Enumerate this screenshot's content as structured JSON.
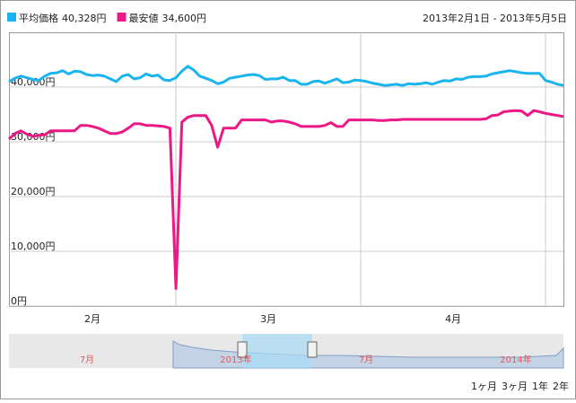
{
  "chart_data": {
    "type": "line",
    "subtitle": "2013年2月1日 - 2013年5月5日",
    "x_labels": [
      "2月",
      "3月",
      "4月"
    ],
    "ylim": [
      0,
      50000
    ],
    "yticks": [
      {
        "value": 0,
        "label": "0円"
      },
      {
        "value": 10000,
        "label": "10,000円"
      },
      {
        "value": 20000,
        "label": "20,000円"
      },
      {
        "value": 30000,
        "label": "30,000円"
      },
      {
        "value": 40000,
        "label": "40,000円"
      }
    ],
    "grid": true,
    "series": [
      {
        "name": "平均価格",
        "summary_label": "40,328円",
        "color": "#1ab4ef",
        "values": [
          41000,
          41600,
          42000,
          41700,
          41400,
          41200,
          42000,
          42500,
          42600,
          43000,
          42400,
          42900,
          42800,
          42300,
          42100,
          42200,
          42000,
          41500,
          41000,
          42000,
          42300,
          41500,
          41700,
          42400,
          42000,
          42200,
          41300,
          41200,
          41700,
          42900,
          43800,
          43100,
          42000,
          41600,
          41200,
          40600,
          40900,
          41600,
          41800,
          42000,
          42200,
          42300,
          42100,
          41400,
          41500,
          41500,
          41800,
          41200,
          41200,
          40500,
          40500,
          41000,
          41100,
          40700,
          41100,
          41500,
          40800,
          40900,
          41300,
          41200,
          41000,
          40700,
          40500,
          40300,
          40400,
          40500,
          40300,
          40600,
          40500,
          40600,
          40800,
          40500,
          40900,
          41200,
          41100,
          41500,
          41400,
          41800,
          41900,
          41900,
          42000,
          42400,
          42600,
          42800,
          43000,
          42800,
          42600,
          42500,
          42500,
          42500,
          41200,
          40900,
          40500,
          40300
        ]
      },
      {
        "name": "最安値",
        "summary_label": "34,600円",
        "color": "#ec1886",
        "values": [
          30500,
          31500,
          32000,
          31400,
          31000,
          31200,
          31300,
          32000,
          32000,
          32000,
          32000,
          32000,
          33000,
          33000,
          32800,
          32500,
          32000,
          31500,
          31500,
          31800,
          32500,
          33300,
          33300,
          33000,
          33000,
          32900,
          32800,
          32500,
          3200,
          33600,
          34500,
          34800,
          34800,
          34800,
          33000,
          29000,
          32500,
          32500,
          32500,
          34000,
          34000,
          34000,
          34000,
          34000,
          33600,
          33800,
          33800,
          33600,
          33300,
          32800,
          32800,
          32800,
          32800,
          33000,
          33500,
          32800,
          32800,
          34000,
          34000,
          34000,
          34000,
          34000,
          33900,
          33900,
          34000,
          34000,
          34100,
          34100,
          34100,
          34100,
          34100,
          34100,
          34100,
          34100,
          34100,
          34100,
          34100,
          34100,
          34100,
          34100,
          34200,
          34800,
          34900,
          35500,
          35600,
          35700,
          35600,
          34800,
          35700,
          35500,
          35200,
          35000,
          34800,
          34600
        ]
      }
    ],
    "navigator_labels": [
      "7月",
      "2013年",
      "7月",
      "2014年"
    ],
    "range_buttons": [
      "1ヶ月",
      "3ヶ月",
      "1年",
      "2年"
    ]
  }
}
